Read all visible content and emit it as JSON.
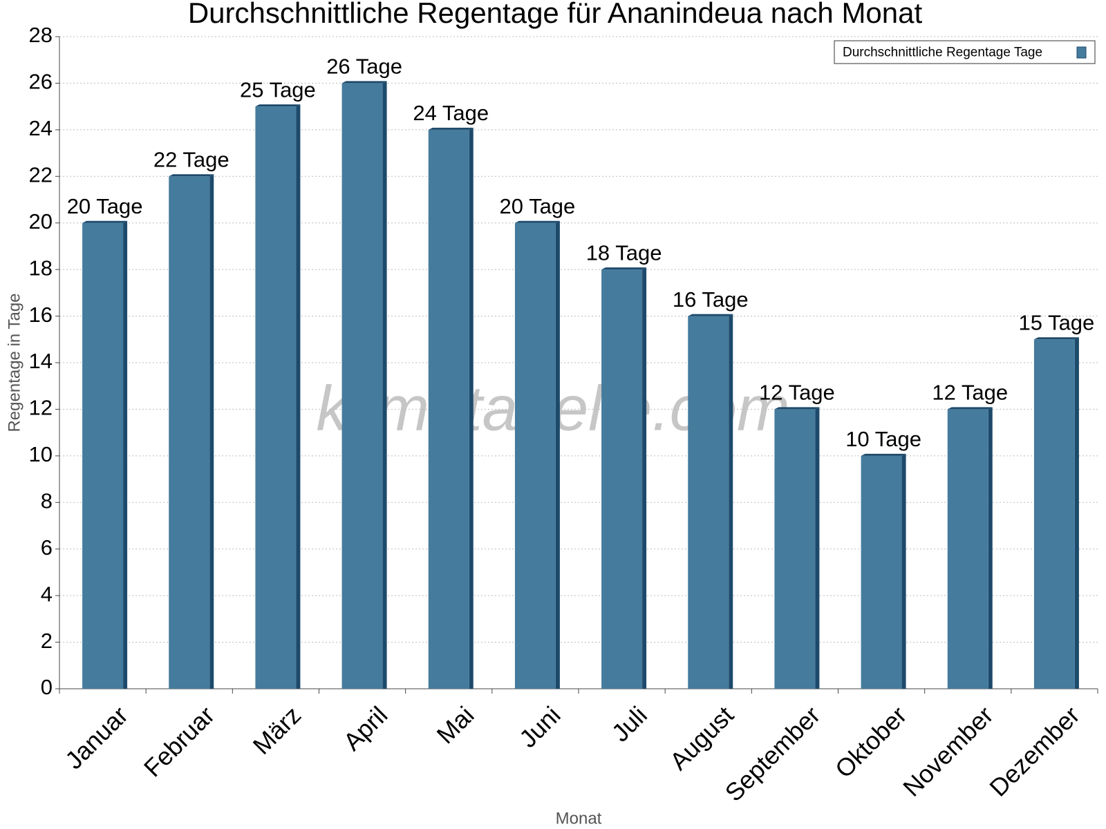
{
  "chart_data": {
    "type": "bar",
    "title": "Durchschnittliche Regentage für Ananindeua nach Monat",
    "x_label": "Monat",
    "y_label": "Regentage in Tage",
    "watermark": "klimatabelle.com",
    "categories": [
      "Januar",
      "Februar",
      "März",
      "April",
      "Mai",
      "Juni",
      "Juli",
      "August",
      "September",
      "Oktober",
      "November",
      "Dezember"
    ],
    "series": [
      {
        "name": "Durchschnittliche Regentage Tage",
        "color": "#457b9d",
        "values": [
          20,
          22,
          25,
          26,
          24,
          20,
          18,
          16,
          12,
          10,
          12,
          15
        ],
        "value_labels": [
          "20 Tage",
          "22 Tage",
          "25 Tage",
          "26 Tage",
          "24 Tage",
          "20 Tage",
          "18 Tage",
          "16 Tage",
          "12 Tage",
          "10 Tage",
          "12 Tage",
          "15 Tage"
        ]
      }
    ],
    "ylim": [
      0,
      28
    ],
    "yticks": [
      0,
      2,
      4,
      6,
      8,
      10,
      12,
      14,
      16,
      18,
      20,
      22,
      24,
      26,
      28
    ],
    "grid": true,
    "legend": "top-right"
  }
}
